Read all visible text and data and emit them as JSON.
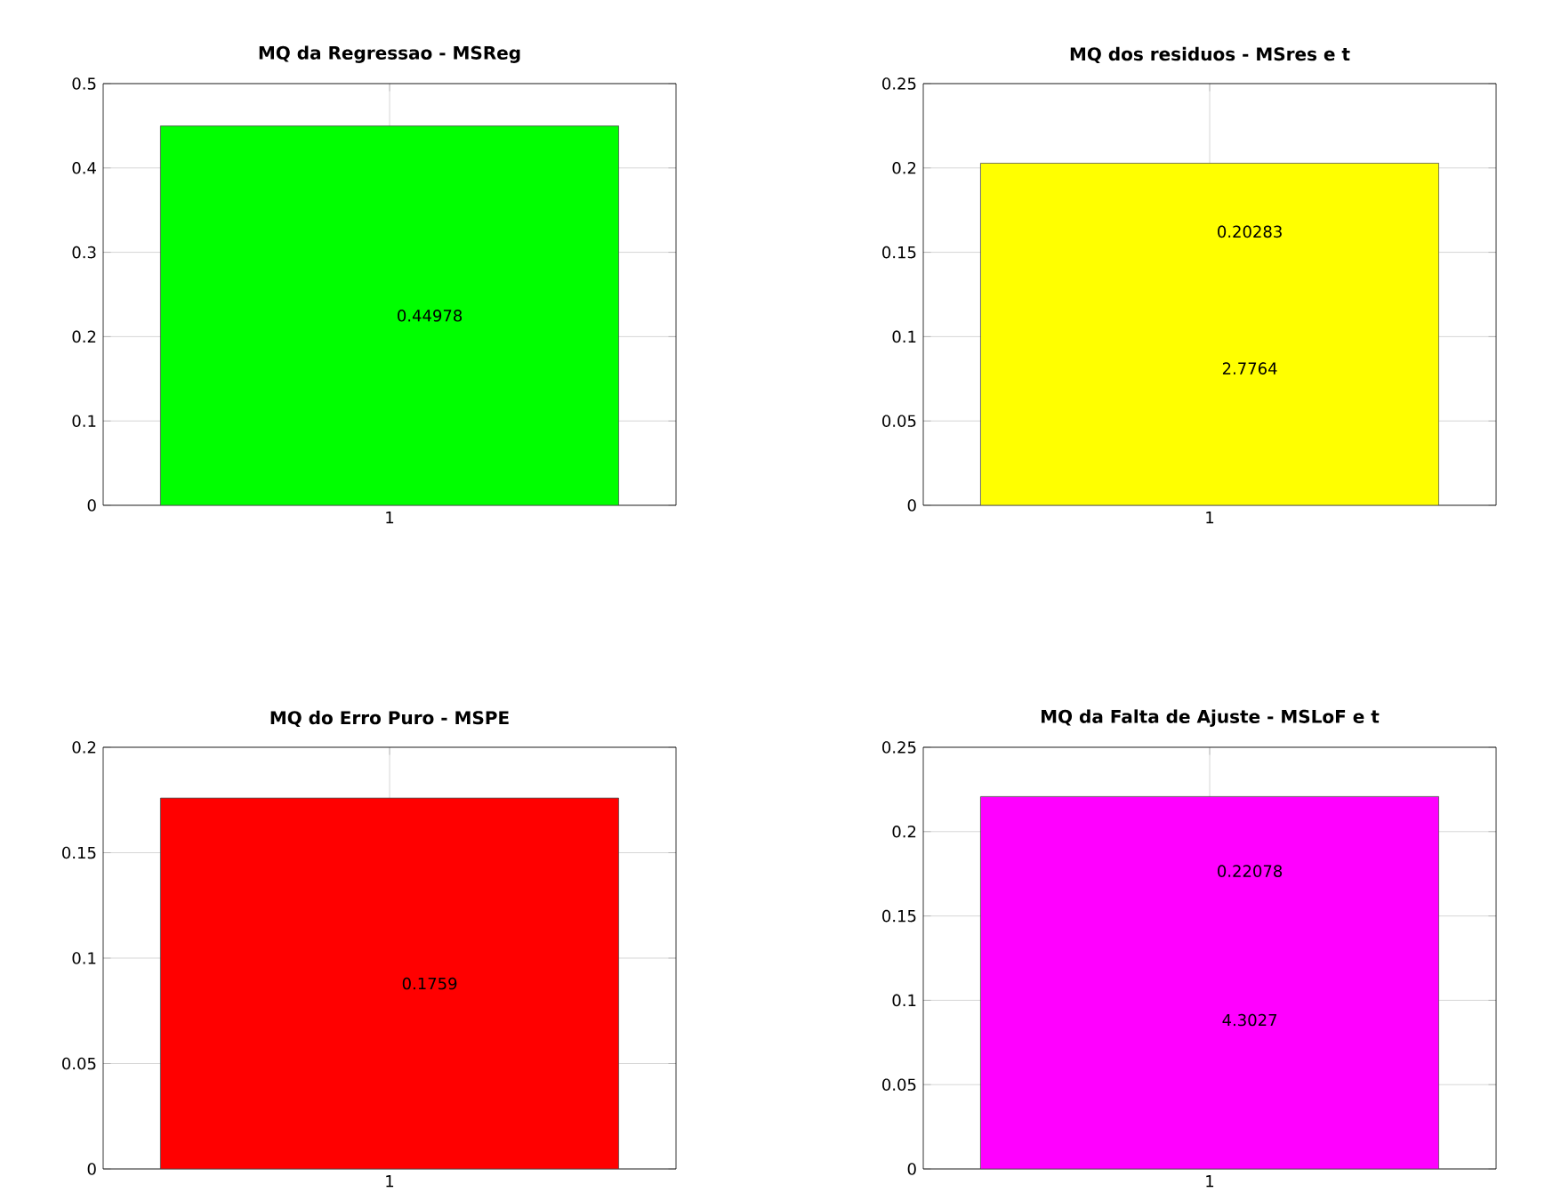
{
  "chart_data": [
    {
      "type": "bar",
      "title": "MQ da Regressao - MSReg",
      "categories": [
        "1"
      ],
      "values": [
        0.44978
      ],
      "color": "#00ff00",
      "ylim": [
        0,
        0.5
      ],
      "yticks": [
        0,
        0.1,
        0.2,
        0.3,
        0.4,
        0.5
      ],
      "grid": true,
      "annotations": [
        "0.44978"
      ]
    },
    {
      "type": "bar",
      "title": "MQ dos residuos - MSres e t",
      "categories": [
        "1"
      ],
      "values": [
        0.20283
      ],
      "color": "#ffff00",
      "ylim": [
        0,
        0.25
      ],
      "yticks": [
        0,
        0.05,
        0.1,
        0.15,
        0.2,
        0.25
      ],
      "grid": true,
      "annotations": [
        "0.20283",
        "2.7764"
      ]
    },
    {
      "type": "bar",
      "title": "MQ do Erro Puro - MSPE",
      "categories": [
        "1"
      ],
      "values": [
        0.1759
      ],
      "color": "#ff0000",
      "ylim": [
        0,
        0.2
      ],
      "yticks": [
        0,
        0.05,
        0.1,
        0.15,
        0.2
      ],
      "grid": true,
      "annotations": [
        "0.1759"
      ]
    },
    {
      "type": "bar",
      "title": "MQ da Falta de Ajuste - MSLoF e t",
      "categories": [
        "1"
      ],
      "values": [
        0.22078
      ],
      "color": "#ff00ff",
      "ylim": [
        0,
        0.25
      ],
      "yticks": [
        0,
        0.05,
        0.1,
        0.15,
        0.2,
        0.25
      ],
      "grid": true,
      "annotations": [
        "0.22078",
        "4.3027"
      ]
    }
  ]
}
